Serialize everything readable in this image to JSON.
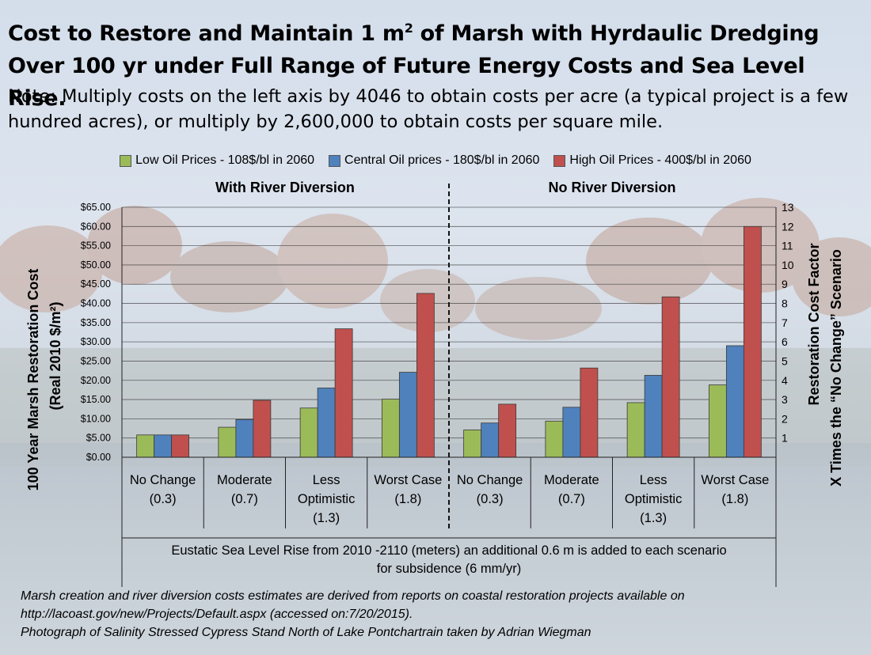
{
  "title": {
    "line1_main": "Cost to Restore and Maintain 1 m",
    "line1_sup": "2",
    "line1_tail": " of Marsh with Hyrdaulic Dredging",
    "line2": "Over 100 yr under Full Range of Future Energy Costs and Sea Level Rise.",
    "note": "Note: Multiply costs on the left axis by 4046 to obtain costs per acre (a typical project is a few hundred acres), or multiply by 2,600,000 to obtain costs per square mile."
  },
  "legend": [
    {
      "label": "Low Oil Prices - 108$/bl in 2060",
      "color": "#9bbb59"
    },
    {
      "label": "Central Oil prices - 180$/bl in 2060",
      "color": "#4f81bd"
    },
    {
      "label": "High Oil Prices - 400$/bl in 2060",
      "color": "#c0504d"
    }
  ],
  "panels": {
    "left": "With River Diversion",
    "right": "No River Diversion"
  },
  "chart_data": {
    "type": "bar",
    "ylabel_line1": "100 Year Marsh Restoration Cost",
    "ylabel_line2": "(Real 2010 $/m²)",
    "y2label_line1": "Restoration Cost Factor",
    "y2label_line2": "X Times the “No Change” Scenario",
    "xlabel_line1": "Eustatic Sea Level Rise from 2010 -2110 (meters) an additional 0.6 m is added to each scenario",
    "xlabel_line2": "for subsidence (6 mm/yr)",
    "ylim": [
      0,
      65
    ],
    "y2lim": [
      0,
      13
    ],
    "y_ticks": [
      "$0.00",
      "$5.00",
      "$10.00",
      "$15.00",
      "$20.00",
      "$25.00",
      "$30.00",
      "$35.00",
      "$40.00",
      "$45.00",
      "$50.00",
      "$55.00",
      "$60.00",
      "$65.00"
    ],
    "y2_ticks": [
      "1",
      "2",
      "3",
      "4",
      "5",
      "6",
      "7",
      "8",
      "9",
      "10",
      "11",
      "12",
      "13"
    ],
    "grid": true,
    "categories": [
      [
        "No Change",
        "(0.3)"
      ],
      [
        "Moderate",
        "(0.7)"
      ],
      [
        "Less",
        "Optimistic",
        "(1.3)"
      ],
      [
        "Worst Case",
        "(1.8)"
      ],
      [
        "No Change",
        "(0.3)"
      ],
      [
        "Moderate",
        "(0.7)"
      ],
      [
        "Less",
        "Optimistic",
        "(1.3)"
      ],
      [
        "Worst Case",
        "(1.8)"
      ]
    ],
    "series": [
      {
        "name": "Low Oil Prices - 108$/bl in 2060",
        "color": "#9bbb59",
        "values": [
          5.8,
          7.8,
          12.8,
          15.1,
          7.1,
          9.4,
          14.2,
          18.8
        ]
      },
      {
        "name": "Central Oil prices - 180$/bl in 2060",
        "color": "#4f81bd",
        "values": [
          5.8,
          9.8,
          18.0,
          22.1,
          8.9,
          13.0,
          21.3,
          29.0
        ]
      },
      {
        "name": "High Oil Prices - 400$/bl in 2060",
        "color": "#c0504d",
        "values": [
          5.8,
          14.8,
          33.4,
          42.6,
          13.8,
          23.2,
          41.7,
          60.0
        ]
      }
    ]
  },
  "caption": {
    "line1": "Marsh creation and river diversion costs estimates are derived from reports on coastal restoration projects available on",
    "line2": "http://lacoast.gov/new/Projects/Default.aspx (accessed on:7/20/2015).",
    "line3": "Photograph of Salinity Stressed Cypress Stand North of Lake Pontchartrain taken by Adrian Wiegman"
  }
}
